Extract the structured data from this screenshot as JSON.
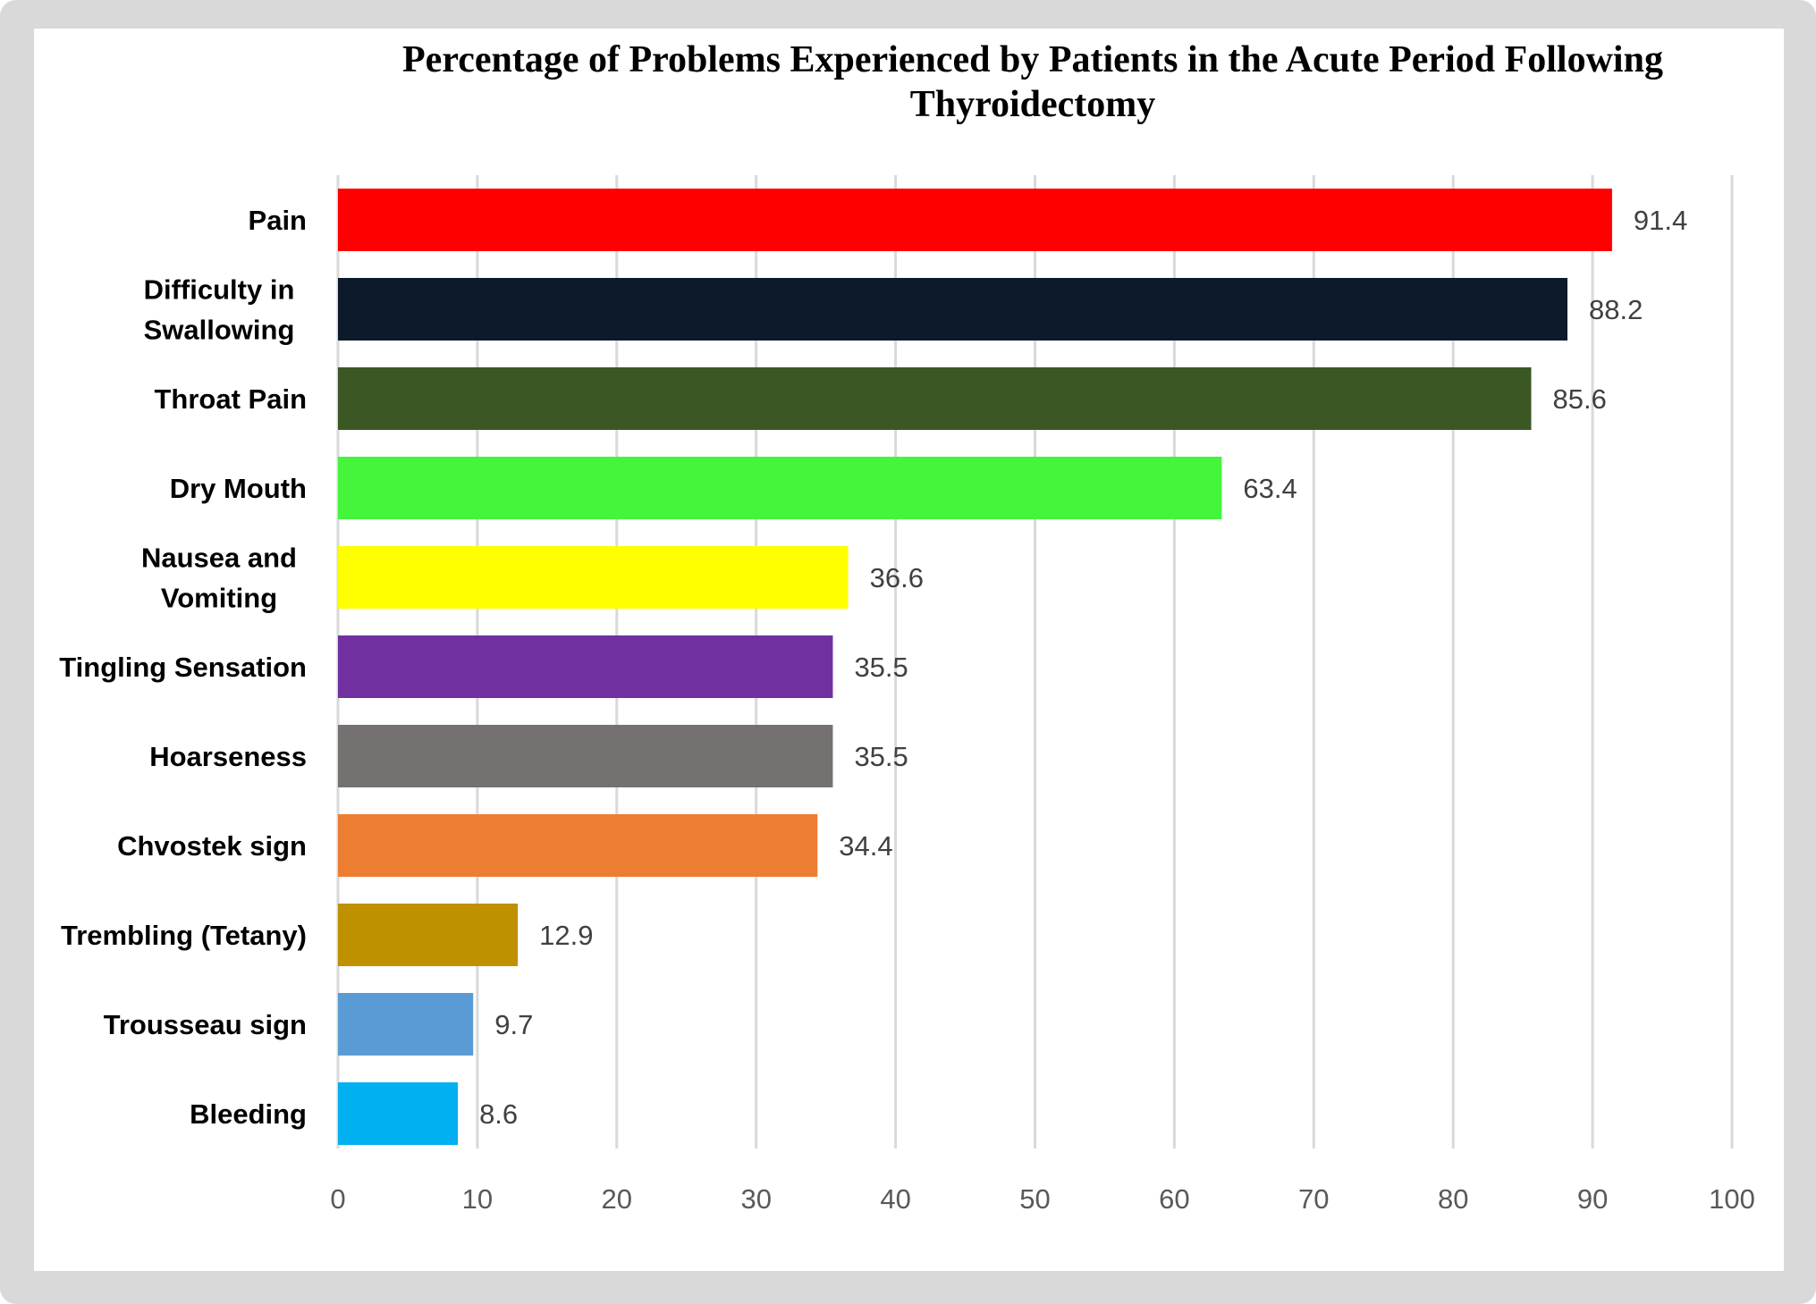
{
  "chart_data": {
    "type": "bar",
    "orientation": "horizontal",
    "title": "Percentage of Problems Experienced by Patients in the Acute Period Following Thyroidectomy",
    "xlabel": "",
    "ylabel": "",
    "xlim": [
      0,
      100
    ],
    "xticks": [
      "0",
      "10",
      "20",
      "30",
      "40",
      "50",
      "60",
      "70",
      "80",
      "90",
      "100"
    ],
    "grid": "vertical",
    "legend": "none",
    "categories": [
      [
        "Pain"
      ],
      [
        "Difficulty in",
        "Swallowing"
      ],
      [
        "Throat Pain"
      ],
      [
        "Dry Mouth"
      ],
      [
        "Nausea and",
        "Vomiting"
      ],
      [
        "Tingling Sensation"
      ],
      [
        "Hoarseness"
      ],
      [
        "Chvostek sign"
      ],
      [
        "Trembling (Tetany)"
      ],
      [
        "Trousseau sign"
      ],
      [
        "Bleeding"
      ]
    ],
    "values": [
      91.4,
      88.2,
      85.6,
      63.4,
      36.6,
      35.5,
      35.5,
      34.4,
      12.9,
      9.7,
      8.6
    ],
    "value_labels": [
      "91.4",
      "88.2",
      "85.6",
      "63.4",
      "36.6",
      "35.5",
      "35.5",
      "34.4",
      "12.9",
      "9.7",
      "8.6"
    ],
    "colors": [
      "#ff0000",
      "#0c1a2b",
      "#3a5724",
      "#44f53c",
      "#ffff00",
      "#7030a0",
      "#767171",
      "#ed7d31",
      "#bf9000",
      "#5b9bd5",
      "#00b0f0"
    ]
  }
}
